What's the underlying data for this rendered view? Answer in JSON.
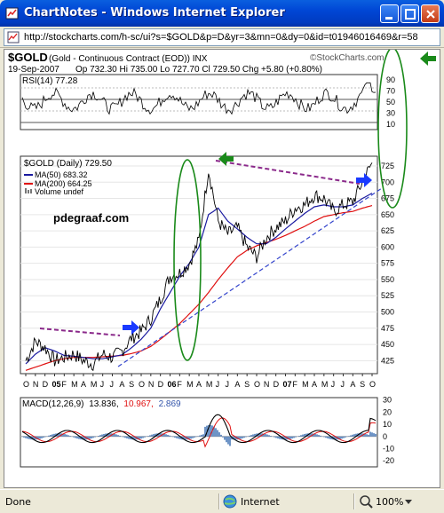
{
  "window": {
    "title": "ChartNotes - Windows Internet Explorer",
    "address_url": "http://stockcharts.com/h-sc/ui?s=$GOLD&p=D&yr=3&mn=0&dy=0&id=t01946016469&r=58"
  },
  "chart": {
    "symbol_title": "$GOLD",
    "instrument_desc": "(Gold - Continuous Contract (EOD))  INX",
    "brand": "©StockCharts.com",
    "date": "19-Sep-2007",
    "quote": "Op 732.30  Hi 735.00  Lo 727.70  Cl 729.50  Chg +5.80 (+0.80%)",
    "rsi": {
      "label": "RSI(14) 77.28",
      "axis_ticks": [
        "90",
        "70",
        "50",
        "30",
        "10"
      ]
    },
    "price": {
      "legend_symbol": "$GOLD (Daily) 729.50",
      "legend_ma50": "MA(50) 683.32",
      "legend_ma200": "MA(200) 664.25",
      "legend_volume": "Volume undef",
      "watermark": "pdegraaf.com",
      "axis_ticks": [
        "725",
        "700",
        "675",
        "650",
        "625",
        "600",
        "575",
        "550",
        "525",
        "500",
        "475",
        "450",
        "425"
      ]
    },
    "x_axis": {
      "labels": [
        "O",
        "N",
        "D",
        "05",
        "F",
        "M",
        "A",
        "M",
        "J",
        "J",
        "A",
        "S",
        "O",
        "N",
        "D",
        "06",
        "F",
        "M",
        "A",
        "M",
        "J",
        "J",
        "A",
        "S",
        "O",
        "N",
        "D",
        "07",
        "F",
        "M",
        "A",
        "M",
        "J",
        "J",
        "A",
        "S",
        "O"
      ]
    },
    "macd": {
      "label": "MACD(12,26,9)",
      "value1": "13.836,",
      "value2": "10.967,",
      "value3": "2.869",
      "axis_ticks": [
        "30",
        "20",
        "10",
        "0",
        "-10",
        "-20"
      ]
    },
    "colors": {
      "price_line": "#000000",
      "ma50": "#1a1aa0",
      "ma200": "#e01010",
      "trend_dashed_purple": "#8b2a8b",
      "trend_dashed_blue": "#3344cc",
      "annotation_oval": "#1a8a1a",
      "annotation_arrow_green": "#1a8a1a",
      "annotation_arrow_blue": "#1a3aff"
    }
  },
  "chart_data": {
    "type": "line",
    "title": "$GOLD",
    "xlabel": "",
    "ylabel": "",
    "x": [
      "O",
      "N",
      "D",
      "05",
      "F",
      "M",
      "A",
      "M",
      "J",
      "J",
      "A",
      "S",
      "O",
      "N",
      "D",
      "06",
      "F",
      "M",
      "A",
      "M",
      "J",
      "J",
      "A",
      "S",
      "O",
      "N",
      "D",
      "07",
      "F",
      "M",
      "A",
      "M",
      "J",
      "J",
      "A",
      "S",
      "O"
    ],
    "ylim": [
      405,
      740
    ],
    "series": [
      {
        "name": "$GOLD (Daily) 729.50",
        "values": [
          425,
          455,
          445,
          425,
          430,
          435,
          425,
          420,
          435,
          430,
          440,
          460,
          470,
          490,
          520,
          555,
          560,
          575,
          610,
          720,
          640,
          620,
          630,
          600,
          585,
          615,
          630,
          640,
          660,
          665,
          680,
          675,
          655,
          665,
          670,
          700,
          730
        ]
      },
      {
        "name": "MA(50) 683.32",
        "values": [
          420,
          435,
          445,
          440,
          433,
          432,
          430,
          428,
          428,
          431,
          434,
          445,
          458,
          475,
          505,
          530,
          555,
          575,
          600,
          650,
          660,
          640,
          628,
          615,
          605,
          605,
          615,
          628,
          640,
          652,
          662,
          665,
          662,
          662,
          665,
          675,
          683
        ]
      },
      {
        "name": "MA(200) 664.25",
        "values": [
          410,
          415,
          420,
          425,
          428,
          430,
          430,
          430,
          431,
          432,
          433,
          436,
          440,
          447,
          458,
          470,
          482,
          497,
          512,
          530,
          550,
          568,
          585,
          595,
          602,
          607,
          612,
          618,
          625,
          632,
          640,
          647,
          650,
          653,
          655,
          660,
          664
        ]
      }
    ],
    "rsi_range": [
      0,
      100
    ],
    "macd_range": [
      -25,
      32
    ]
  }
}
